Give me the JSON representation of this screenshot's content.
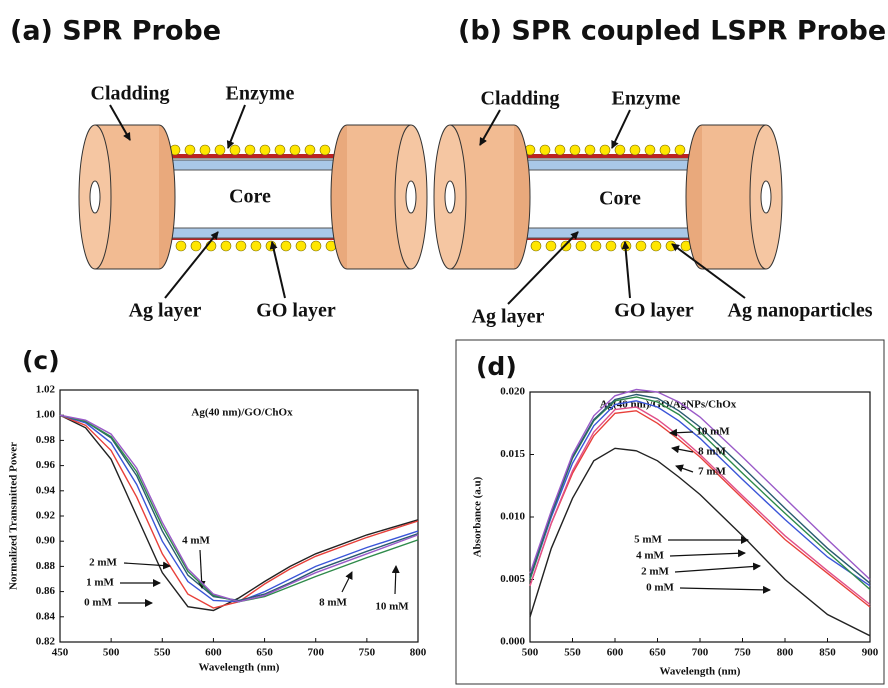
{
  "diagrams": [
    {
      "title": "(a) SPR Probe",
      "labels": [
        "Cladding",
        "Enzyme",
        "Core",
        "Ag layer",
        "GO layer"
      ]
    },
    {
      "title": "(b) SPR coupled LSPR Probe",
      "labels": [
        "Cladding",
        "Enzyme",
        "Core",
        "Ag layer",
        "GO layer",
        "Ag nanoparticles"
      ]
    }
  ],
  "chart_data": [
    {
      "type": "line",
      "panel": "(c)",
      "title": "Ag(40 nm)/GO/ChOx",
      "xlabel": "Wavelength (nm)",
      "ylabel": "Normalized Transmitted Power",
      "x": [
        450,
        475,
        500,
        525,
        550,
        575,
        600,
        625,
        650,
        675,
        700,
        750,
        800
      ],
      "xlim": [
        450,
        800
      ],
      "xticks": [
        450,
        500,
        550,
        600,
        650,
        700,
        750,
        800
      ],
      "ylim": [
        0.82,
        1.02
      ],
      "yticks": [
        0.82,
        0.84,
        0.86,
        0.88,
        {
          "value": 0.9,
          "label": "0.90"
        },
        0.92,
        0.94,
        0.96,
        0.98,
        {
          "value": 1,
          "label": "1.00"
        },
        1.02
      ],
      "series": [
        {
          "name": "0 mM",
          "color": "#222222",
          "values": [
            1.0,
            0.99,
            0.965,
            0.92,
            0.875,
            0.848,
            0.845,
            0.855,
            0.868,
            0.88,
            0.89,
            0.905,
            0.917
          ]
        },
        {
          "name": "1 mM",
          "color": "#e8403a",
          "values": [
            1.0,
            0.992,
            0.972,
            0.935,
            0.89,
            0.858,
            0.847,
            0.852,
            0.866,
            0.878,
            0.888,
            0.903,
            0.916
          ]
        },
        {
          "name": "2 mM",
          "color": "#3a55d8",
          "values": [
            1.0,
            0.994,
            0.978,
            0.945,
            0.9,
            0.868,
            0.853,
            0.852,
            0.86,
            0.87,
            0.88,
            0.895,
            0.908
          ]
        },
        {
          "name": "4 mM",
          "color": "#2a5a70",
          "values": [
            1.0,
            0.995,
            0.982,
            0.952,
            0.908,
            0.873,
            0.856,
            0.853,
            0.858,
            0.867,
            0.877,
            0.892,
            0.906
          ]
        },
        {
          "name": "8 mM",
          "color": "#2e8a4a",
          "values": [
            1.0,
            0.995,
            0.983,
            0.955,
            0.912,
            0.876,
            0.857,
            0.852,
            0.856,
            0.864,
            0.872,
            0.887,
            0.901
          ]
        },
        {
          "name": "10 mM",
          "color": "#9a5ac8",
          "values": [
            1.0,
            0.996,
            0.985,
            0.958,
            0.915,
            0.878,
            0.858,
            0.852,
            0.857,
            0.866,
            0.875,
            0.89,
            0.905
          ]
        }
      ]
    },
    {
      "type": "line",
      "panel": "(d)",
      "title": "Ag(40 nm)/GO/AgNPs/ChOx",
      "xlabel": "Wavelength (nm)",
      "ylabel": "Absorbance (a.u)",
      "x": [
        500,
        525,
        550,
        575,
        600,
        625,
        650,
        675,
        700,
        750,
        800,
        850,
        900
      ],
      "xlim": [
        500,
        900
      ],
      "xticks": [
        500,
        550,
        600,
        650,
        700,
        750,
        800,
        850,
        900
      ],
      "ylim": [
        0,
        0.02
      ],
      "yticks": [
        {
          "value": 0,
          "label": "0.000"
        },
        0.005,
        {
          "value": 0.01,
          "label": "0.010"
        },
        0.015,
        {
          "value": 0.02,
          "label": "0.020"
        }
      ],
      "series": [
        {
          "name": "0 mM",
          "color": "#222222",
          "values": [
            0.002,
            0.0075,
            0.0115,
            0.0145,
            0.0155,
            0.0153,
            0.0145,
            0.0132,
            0.0118,
            0.0085,
            0.005,
            0.0022,
            0.0005
          ]
        },
        {
          "name": "2 mM",
          "color": "#e8403a",
          "values": [
            0.0045,
            0.0095,
            0.0135,
            0.0165,
            0.0183,
            0.0185,
            0.0175,
            0.0162,
            0.0148,
            0.0115,
            0.0082,
            0.0055,
            0.0028
          ]
        },
        {
          "name": "4 mM",
          "color": "#e0508a",
          "values": [
            0.0045,
            0.0095,
            0.0137,
            0.0168,
            0.0186,
            0.0188,
            0.0178,
            0.0165,
            0.015,
            0.0117,
            0.0085,
            0.0057,
            0.003
          ]
        },
        {
          "name": "5 mM",
          "color": "#3a55d8",
          "values": [
            0.005,
            0.01,
            0.0143,
            0.0173,
            0.019,
            0.0193,
            0.0188,
            0.0177,
            0.0163,
            0.013,
            0.0098,
            0.0068,
            0.0045
          ]
        },
        {
          "name": "7 mM",
          "color": "#2e8a4a",
          "values": [
            0.005,
            0.0102,
            0.0147,
            0.0177,
            0.0193,
            0.0196,
            0.0192,
            0.0182,
            0.0168,
            0.0135,
            0.0103,
            0.0072,
            0.0042
          ]
        },
        {
          "name": "8 mM",
          "color": "#2a5a70",
          "values": [
            0.0052,
            0.0103,
            0.0148,
            0.0178,
            0.0194,
            0.0198,
            0.0195,
            0.0185,
            0.0172,
            0.014,
            0.0107,
            0.0075,
            0.0047
          ]
        },
        {
          "name": "10 mM",
          "color": "#9a5ac8",
          "values": [
            0.0055,
            0.0105,
            0.015,
            0.0181,
            0.0197,
            0.0202,
            0.02,
            0.0192,
            0.018,
            0.0148,
            0.0115,
            0.0082,
            0.005
          ]
        }
      ]
    }
  ]
}
